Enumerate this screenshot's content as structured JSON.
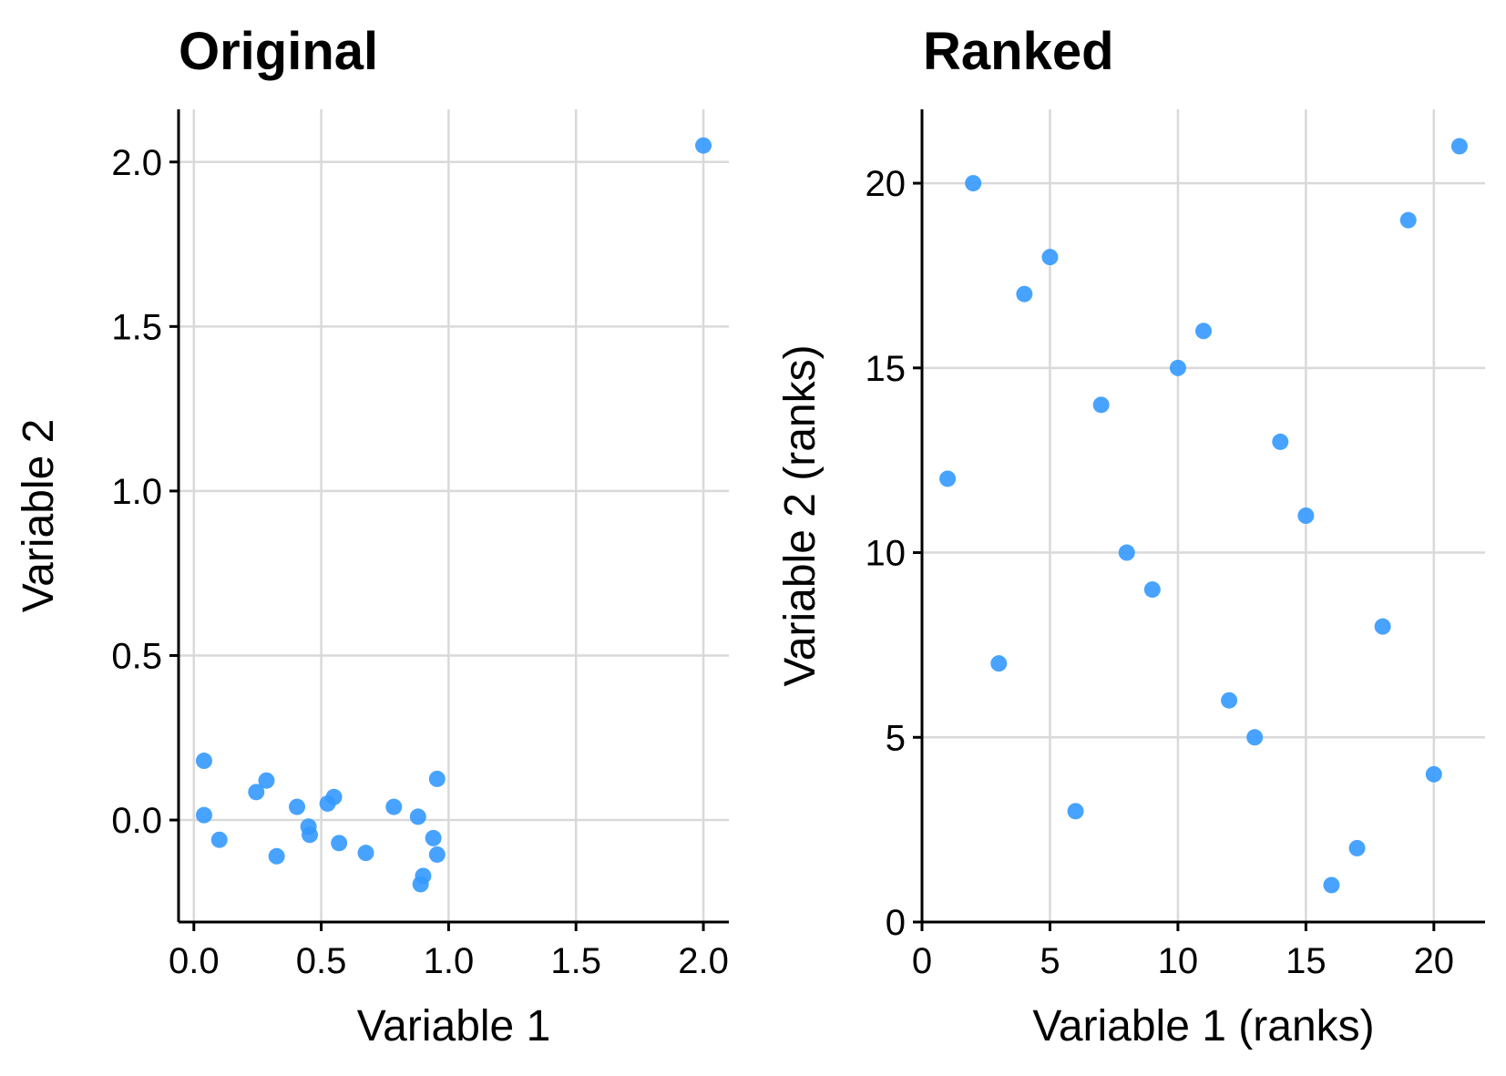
{
  "chart_data": [
    {
      "type": "scatter",
      "title": "Original",
      "xlabel": "Variable 1",
      "ylabel": "Variable 2",
      "xlim": [
        -0.06,
        2.1
      ],
      "ylim": [
        -0.31,
        2.16
      ],
      "xticks": [
        0.0,
        0.5,
        1.0,
        1.5,
        2.0
      ],
      "xtick_labels": [
        "0.0",
        "0.5",
        "1.0",
        "1.5",
        "2.0"
      ],
      "yticks": [
        0.0,
        0.5,
        1.0,
        1.5,
        2.0
      ],
      "ytick_labels": [
        "0.0",
        "0.5",
        "1.0",
        "1.5",
        "2.0"
      ],
      "grid": true,
      "point_color": "#3399FF",
      "points": [
        {
          "x": 0.04,
          "y": 0.18
        },
        {
          "x": 0.04,
          "y": 0.015
        },
        {
          "x": 0.1,
          "y": -0.06
        },
        {
          "x": 0.245,
          "y": 0.085
        },
        {
          "x": 0.285,
          "y": 0.12
        },
        {
          "x": 0.325,
          "y": -0.11
        },
        {
          "x": 0.405,
          "y": 0.04
        },
        {
          "x": 0.45,
          "y": -0.02
        },
        {
          "x": 0.455,
          "y": -0.045
        },
        {
          "x": 0.525,
          "y": 0.05
        },
        {
          "x": 0.55,
          "y": 0.07
        },
        {
          "x": 0.57,
          "y": -0.07
        },
        {
          "x": 0.675,
          "y": -0.1
        },
        {
          "x": 0.785,
          "y": 0.04
        },
        {
          "x": 0.88,
          "y": 0.01
        },
        {
          "x": 0.89,
          "y": -0.195
        },
        {
          "x": 0.9,
          "y": -0.17
        },
        {
          "x": 0.94,
          "y": -0.055
        },
        {
          "x": 0.955,
          "y": 0.125
        },
        {
          "x": 0.955,
          "y": -0.105
        },
        {
          "x": 2.0,
          "y": 2.05
        }
      ]
    },
    {
      "type": "scatter",
      "title": "Ranked",
      "xlabel": "Variable 1 (ranks)",
      "ylabel": "Variable 2 (ranks)",
      "xlim": [
        0,
        22
      ],
      "ylim": [
        0,
        22
      ],
      "xticks": [
        0,
        5,
        10,
        15,
        20
      ],
      "xtick_labels": [
        "0",
        "5",
        "10",
        "15",
        "20"
      ],
      "yticks": [
        0,
        5,
        10,
        15,
        20
      ],
      "ytick_labels": [
        "0",
        "5",
        "10",
        "15",
        "20"
      ],
      "grid": true,
      "point_color": "#3399FF",
      "points": [
        {
          "x": 1,
          "y": 12
        },
        {
          "x": 2,
          "y": 20
        },
        {
          "x": 3,
          "y": 7
        },
        {
          "x": 4,
          "y": 17
        },
        {
          "x": 5,
          "y": 18
        },
        {
          "x": 6,
          "y": 3
        },
        {
          "x": 7,
          "y": 14
        },
        {
          "x": 8,
          "y": 10
        },
        {
          "x": 9,
          "y": 9
        },
        {
          "x": 10,
          "y": 15
        },
        {
          "x": 11,
          "y": 16
        },
        {
          "x": 12,
          "y": 6
        },
        {
          "x": 13,
          "y": 5
        },
        {
          "x": 14,
          "y": 13
        },
        {
          "x": 15,
          "y": 11
        },
        {
          "x": 16,
          "y": 1
        },
        {
          "x": 17,
          "y": 2
        },
        {
          "x": 18,
          "y": 8
        },
        {
          "x": 19,
          "y": 19
        },
        {
          "x": 20,
          "y": 4
        },
        {
          "x": 21,
          "y": 21
        }
      ]
    }
  ]
}
